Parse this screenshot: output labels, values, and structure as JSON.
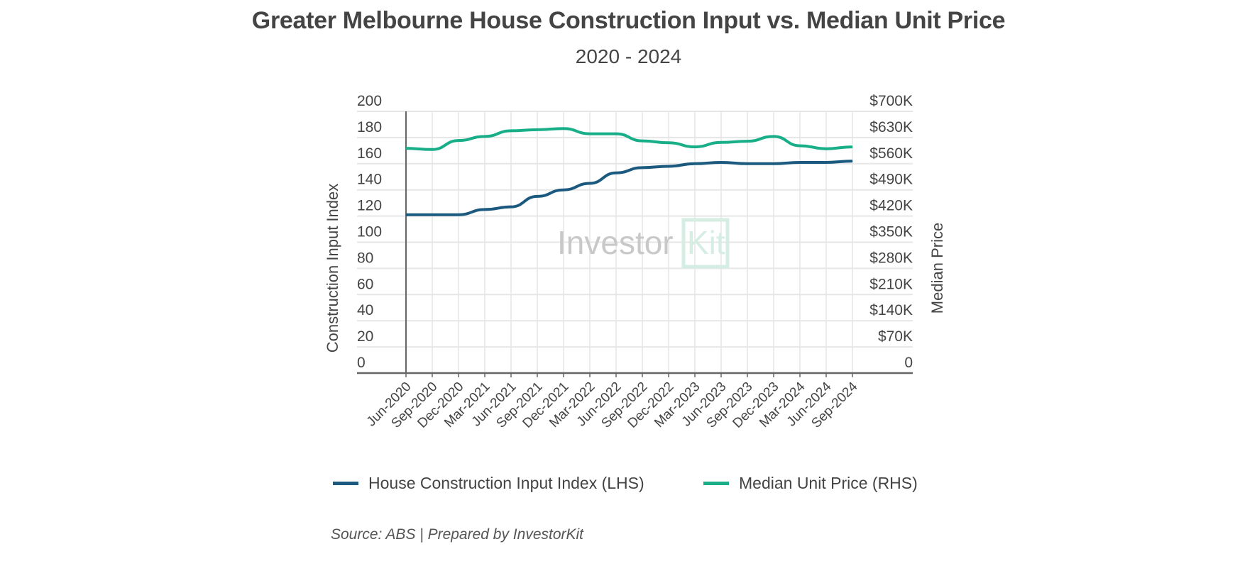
{
  "colors": {
    "lhs": "#1b5a7e",
    "rhs": "#17ae88",
    "grid": "#e6e6e6",
    "axis": "#666666"
  },
  "watermark": {
    "text1": "Investor",
    "text2": "Kit"
  },
  "source": "Source: ABS | Prepared by InvestorKit",
  "chart_data": {
    "type": "line",
    "title": "Greater Melbourne House Construction Input vs. Median Unit Price",
    "subtitle": "2020 - 2024",
    "categories": [
      "Jun-2020",
      "Sep-2020",
      "Dec-2020",
      "Mar-2021",
      "Jun-2021",
      "Sep-2021",
      "Dec-2021",
      "Mar-2022",
      "Jun-2022",
      "Sep-2022",
      "Dec-2022",
      "Mar-2023",
      "Jun-2023",
      "Sep-2023",
      "Dec-2023",
      "Mar-2024",
      "Jun-2024",
      "Sep-2024"
    ],
    "ylabel_left": "Construction Input Index",
    "ylabel_right": "Median Price",
    "ylim_left": [
      0,
      200
    ],
    "ylim_right": [
      0,
      700000
    ],
    "yticks_left": [
      "0",
      "20",
      "40",
      "60",
      "80",
      "100",
      "120",
      "140",
      "160",
      "180",
      "200"
    ],
    "yticks_right": [
      "0",
      "$70K",
      "$140K",
      "$210K",
      "$280K",
      "$350K",
      "$420K",
      "$490K",
      "$560K",
      "$630K",
      "$700K"
    ],
    "grid": true,
    "legend_position": "bottom",
    "series": [
      {
        "name": "House Construction Input Index (LHS)",
        "axis": "left",
        "values": [
          121,
          121,
          121,
          125,
          127,
          135,
          140,
          145,
          153,
          157,
          158,
          160,
          161,
          160,
          160,
          161,
          161,
          162
        ]
      },
      {
        "name": "Median Unit Price (RHS)",
        "axis": "right",
        "values": [
          601000,
          598000,
          622000,
          633000,
          648000,
          651000,
          654000,
          640000,
          640000,
          621000,
          616000,
          605000,
          617000,
          620000,
          633000,
          608000,
          600000,
          605000
        ]
      }
    ]
  }
}
